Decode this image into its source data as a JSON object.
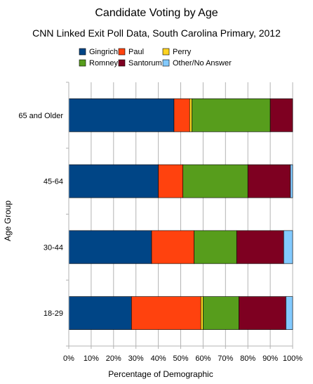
{
  "chart_data": {
    "type": "bar",
    "orientation": "horizontal",
    "stacked": true,
    "title": "Candidate Voting by Age",
    "subtitle": "CNN Linked Exit Poll Data, South Carolina Primary, 2012",
    "xlabel": "Percentage of Demographic",
    "ylabel": "Age Group",
    "xlim": [
      0,
      100
    ],
    "x_ticks": [
      "0%",
      "10%",
      "20%",
      "30%",
      "40%",
      "50%",
      "60%",
      "70%",
      "80%",
      "90%",
      "100%"
    ],
    "categories": [
      "65 and Older",
      "45-64",
      "30-44",
      "18-29"
    ],
    "grid": "vertical major lines",
    "legend_position": "top",
    "series": [
      {
        "name": "Gingrich",
        "color": "#004586",
        "values": [
          47,
          40,
          37,
          28
        ]
      },
      {
        "name": "Paul",
        "color": "#ff420e",
        "values": [
          7,
          11,
          19,
          31
        ]
      },
      {
        "name": "Perry",
        "color": "#ffd320",
        "values": [
          1,
          0,
          0,
          1
        ]
      },
      {
        "name": "Romney",
        "color": "#579d1c",
        "values": [
          35,
          29,
          19,
          16
        ]
      },
      {
        "name": "Santorum",
        "color": "#7e0021",
        "values": [
          10,
          19,
          21,
          21
        ]
      },
      {
        "name": "Other/No Answer",
        "color": "#83caff",
        "values": [
          0,
          1,
          4,
          3
        ]
      }
    ]
  }
}
